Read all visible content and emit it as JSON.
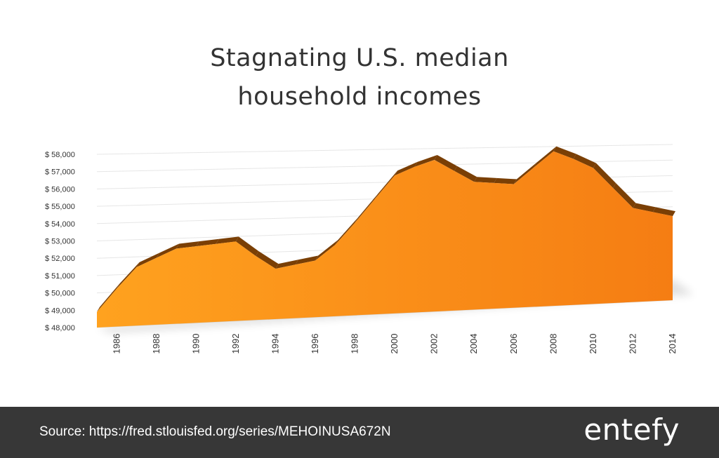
{
  "header": {
    "title_line1": "Stagnating U.S. median",
    "title_line2": "household incomes"
  },
  "footer": {
    "source": "Source: https://fred.stlouisfed.org/series/MEHOINUSA672N",
    "logo": "entefy"
  },
  "colors": {
    "fill_light": "#ffa21f",
    "fill_dark": "#f57d13",
    "edge": "#7a3f05",
    "grid": "#e6e6e6",
    "text": "#333333",
    "footer_bg": "#373737"
  },
  "chart_data": {
    "type": "area",
    "title": "Stagnating U.S. median household incomes",
    "x": [
      1985,
      1986,
      1987,
      1988,
      1989,
      1990,
      1991,
      1992,
      1993,
      1994,
      1995,
      1996,
      1997,
      1998,
      1999,
      2000,
      2001,
      2002,
      2003,
      2004,
      2005,
      2006,
      2007,
      2008,
      2009,
      2010,
      2011,
      2012,
      2013,
      2014
    ],
    "x_tick_labels": [
      "1986",
      "1988",
      "1990",
      "1992",
      "1994",
      "1996",
      "1998",
      "2000",
      "2002",
      "2004",
      "2006",
      "2008",
      "2010",
      "2012",
      "2014"
    ],
    "x_tick_values": [
      1986,
      1988,
      1990,
      1992,
      1994,
      1996,
      1998,
      2000,
      2002,
      2004,
      2006,
      2008,
      2010,
      2012,
      2014
    ],
    "y_tick_labels": [
      "$ 48,000",
      "$ 49,000",
      "$ 50,000",
      "$ 51,000",
      "$ 52,000",
      "$ 53,000",
      "$ 54,000",
      "$ 55,000",
      "$ 56,000",
      "$ 57,000",
      "$ 58,000"
    ],
    "y_tick_values": [
      48000,
      49000,
      50000,
      51000,
      52000,
      53000,
      54000,
      55000,
      56000,
      57000,
      58000
    ],
    "series": [
      {
        "values": [
          48900,
          50200,
          51400,
          51900,
          52400,
          52500,
          52600,
          52700,
          51800,
          51000,
          51200,
          51400,
          52300,
          53600,
          55000,
          56400,
          56900,
          57300,
          56600,
          55900,
          55800,
          55700,
          56700,
          57700,
          57200,
          56600,
          55300,
          54000,
          53700,
          53400
        ]
      }
    ],
    "ylim": [
      48000,
      58000
    ],
    "xlim": [
      1985,
      2014
    ],
    "grid": true,
    "legend": "none"
  }
}
